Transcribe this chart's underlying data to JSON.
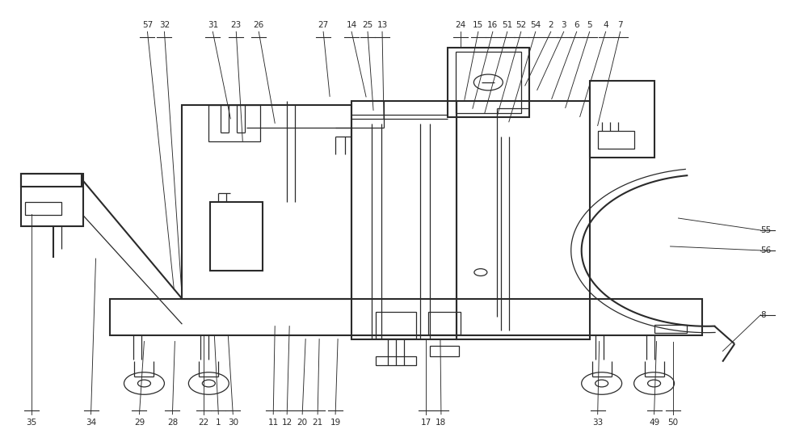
{
  "fig_width": 10.0,
  "fig_height": 5.52,
  "dpi": 100,
  "bg_color": "#ffffff",
  "line_color": "#2a2a2a",
  "lw_main": 1.5,
  "lw_thin": 0.9,
  "top_labels": [
    [
      "57",
      0.182
    ],
    [
      "32",
      0.203
    ],
    [
      "31",
      0.263
    ],
    [
      "23",
      0.292
    ],
    [
      "26",
      0.32
    ],
    [
      "27",
      0.4
    ],
    [
      "14",
      0.435
    ],
    [
      "25",
      0.455
    ],
    [
      "13",
      0.473
    ],
    [
      "24",
      0.57
    ],
    [
      "15",
      0.592
    ],
    [
      "16",
      0.61
    ],
    [
      "51",
      0.628
    ],
    [
      "52",
      0.645
    ],
    [
      "54",
      0.663
    ],
    [
      "2",
      0.682
    ],
    [
      "3",
      0.698
    ],
    [
      "6",
      0.714
    ],
    [
      "5",
      0.73
    ],
    [
      "4",
      0.75
    ],
    [
      "7",
      0.768
    ]
  ],
  "bottom_labels": [
    [
      "35",
      0.038
    ],
    [
      "34",
      0.112
    ],
    [
      "29",
      0.172
    ],
    [
      "28",
      0.213
    ],
    [
      "22",
      0.252
    ],
    [
      "1",
      0.27
    ],
    [
      "30",
      0.288
    ],
    [
      "11",
      0.338
    ],
    [
      "12",
      0.355
    ],
    [
      "20",
      0.374
    ],
    [
      "21",
      0.393
    ],
    [
      "19",
      0.415
    ],
    [
      "17",
      0.527
    ],
    [
      "18",
      0.546
    ],
    [
      "33",
      0.74
    ],
    [
      "49",
      0.81
    ],
    [
      "50",
      0.833
    ]
  ]
}
